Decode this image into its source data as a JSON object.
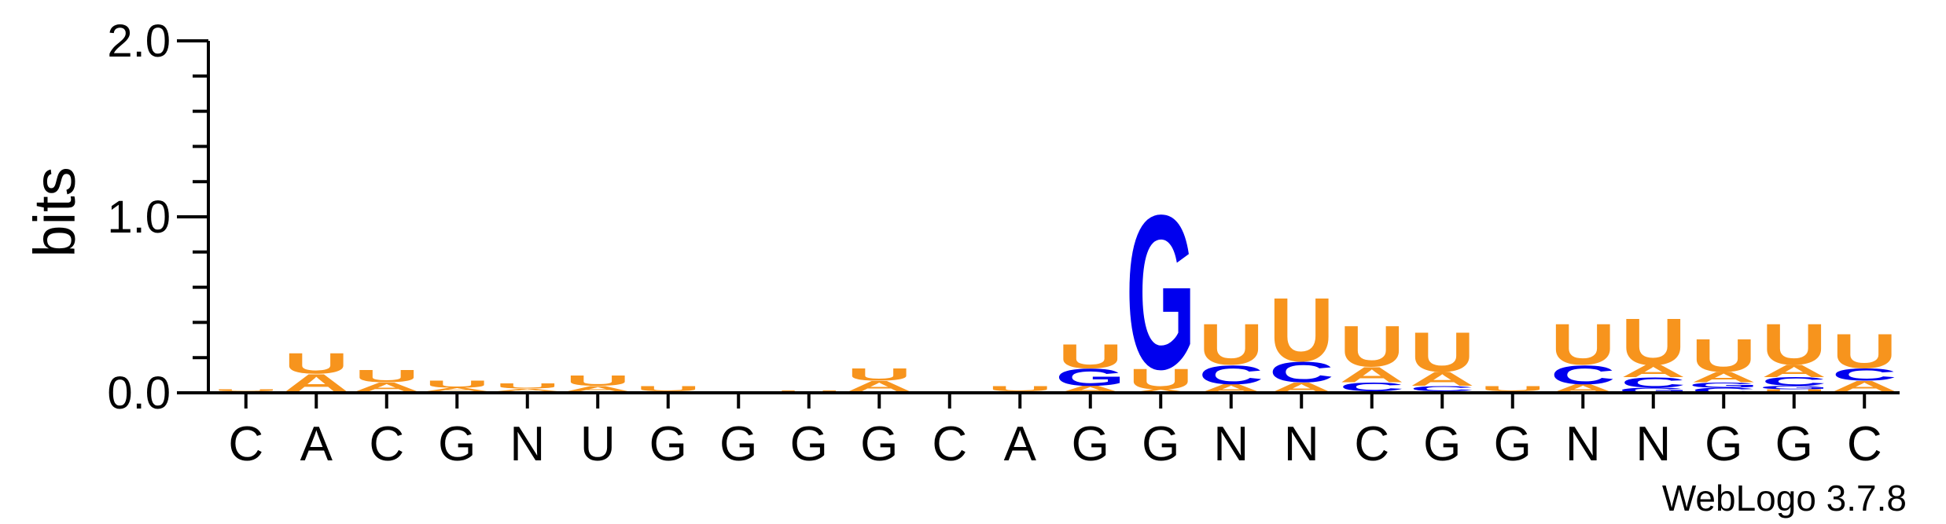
{
  "chart_data": {
    "type": "sequence-logo",
    "ylabel": "bits",
    "ylim": [
      0,
      2
    ],
    "yticks": [
      "0.0",
      "1.0",
      "2.0"
    ],
    "credit": "WebLogo 3.7.8",
    "colors": {
      "A": "#f7941d",
      "U": "#f7941d",
      "G": "#0000ee",
      "C": "#0000ee"
    },
    "positions": [
      {
        "label": "C",
        "stack": [
          {
            "letter": "A",
            "bits": 0.01
          },
          {
            "letter": "U",
            "bits": 0.012
          }
        ]
      },
      {
        "label": "A",
        "stack": [
          {
            "letter": "G",
            "bits": 0.01
          },
          {
            "letter": "A",
            "bits": 0.1
          },
          {
            "letter": "U",
            "bits": 0.12
          }
        ]
      },
      {
        "label": "C",
        "stack": [
          {
            "letter": "G",
            "bits": 0.01
          },
          {
            "letter": "A",
            "bits": 0.05
          },
          {
            "letter": "U",
            "bits": 0.07
          }
        ]
      },
      {
        "label": "G",
        "stack": [
          {
            "letter": "C",
            "bits": 0.01
          },
          {
            "letter": "A",
            "bits": 0.02
          },
          {
            "letter": "U",
            "bits": 0.04
          }
        ]
      },
      {
        "label": "N",
        "stack": [
          {
            "letter": "C",
            "bits": 0.01
          },
          {
            "letter": "A",
            "bits": 0.015
          },
          {
            "letter": "U",
            "bits": 0.03
          }
        ]
      },
      {
        "label": "U",
        "stack": [
          {
            "letter": "C",
            "bits": 0.01
          },
          {
            "letter": "A",
            "bits": 0.03
          },
          {
            "letter": "U",
            "bits": 0.06
          }
        ]
      },
      {
        "label": "G",
        "stack": [
          {
            "letter": "A",
            "bits": 0.01
          },
          {
            "letter": "U",
            "bits": 0.03
          }
        ]
      },
      {
        "label": "G",
        "stack": [
          {
            "letter": "U",
            "bits": 0.01
          }
        ]
      },
      {
        "label": "G",
        "stack": [
          {
            "letter": "A",
            "bits": 0.005
          },
          {
            "letter": "U",
            "bits": 0.01
          }
        ]
      },
      {
        "label": "G",
        "stack": [
          {
            "letter": "G",
            "bits": 0.01
          },
          {
            "letter": "A",
            "bits": 0.06
          },
          {
            "letter": "U",
            "bits": 0.07
          }
        ]
      },
      {
        "label": "C",
        "stack": [
          {
            "letter": "U",
            "bits": 0.005
          }
        ]
      },
      {
        "label": "A",
        "stack": [
          {
            "letter": "A",
            "bits": 0.01
          },
          {
            "letter": "U",
            "bits": 0.03
          }
        ]
      },
      {
        "label": "G",
        "stack": [
          {
            "letter": "A",
            "bits": 0.04
          },
          {
            "letter": "G",
            "bits": 0.1
          },
          {
            "letter": "U",
            "bits": 0.14
          }
        ]
      },
      {
        "label": "G",
        "stack": [
          {
            "letter": "A",
            "bits": 0.02
          },
          {
            "letter": "U",
            "bits": 0.12
          },
          {
            "letter": "G",
            "bits": 0.9
          }
        ]
      },
      {
        "label": "N",
        "stack": [
          {
            "letter": "A",
            "bits": 0.05
          },
          {
            "letter": "C",
            "bits": 0.11
          },
          {
            "letter": "U",
            "bits": 0.24
          }
        ]
      },
      {
        "label": "N",
        "stack": [
          {
            "letter": "A",
            "bits": 0.06
          },
          {
            "letter": "C",
            "bits": 0.12
          },
          {
            "letter": "U",
            "bits": 0.37
          }
        ]
      },
      {
        "label": "C",
        "stack": [
          {
            "letter": "G",
            "bits": 0.01
          },
          {
            "letter": "C",
            "bits": 0.05
          },
          {
            "letter": "A",
            "bits": 0.09
          },
          {
            "letter": "U",
            "bits": 0.24
          }
        ]
      },
      {
        "label": "G",
        "stack": [
          {
            "letter": "G",
            "bits": 0.01
          },
          {
            "letter": "C",
            "bits": 0.03
          },
          {
            "letter": "A",
            "bits": 0.08
          },
          {
            "letter": "U",
            "bits": 0.23
          }
        ]
      },
      {
        "label": "G",
        "stack": [
          {
            "letter": "A",
            "bits": 0.01
          },
          {
            "letter": "U",
            "bits": 0.03
          }
        ]
      },
      {
        "label": "N",
        "stack": [
          {
            "letter": "A",
            "bits": 0.05
          },
          {
            "letter": "C",
            "bits": 0.11
          },
          {
            "letter": "U",
            "bits": 0.24
          }
        ]
      },
      {
        "label": "N",
        "stack": [
          {
            "letter": "G",
            "bits": 0.03
          },
          {
            "letter": "C",
            "bits": 0.06
          },
          {
            "letter": "A",
            "bits": 0.07
          },
          {
            "letter": "U",
            "bits": 0.27
          }
        ]
      },
      {
        "label": "G",
        "stack": [
          {
            "letter": "C",
            "bits": 0.03
          },
          {
            "letter": "G",
            "bits": 0.03
          },
          {
            "letter": "A",
            "bits": 0.06
          },
          {
            "letter": "U",
            "bits": 0.19
          }
        ]
      },
      {
        "label": "G",
        "stack": [
          {
            "letter": "U",
            "bits": 0.02
          },
          {
            "letter": "G",
            "bits": 0.02
          },
          {
            "letter": "C",
            "bits": 0.05
          },
          {
            "letter": "A",
            "bits": 0.07
          },
          {
            "letter": "U",
            "bits": 0.24
          }
        ]
      },
      {
        "label": "C",
        "stack": [
          {
            "letter": "C",
            "bits": 0.01
          },
          {
            "letter": "A",
            "bits": 0.06
          },
          {
            "letter": "C",
            "bits": 0.07
          },
          {
            "letter": "U",
            "bits": 0.2
          }
        ]
      }
    ]
  }
}
